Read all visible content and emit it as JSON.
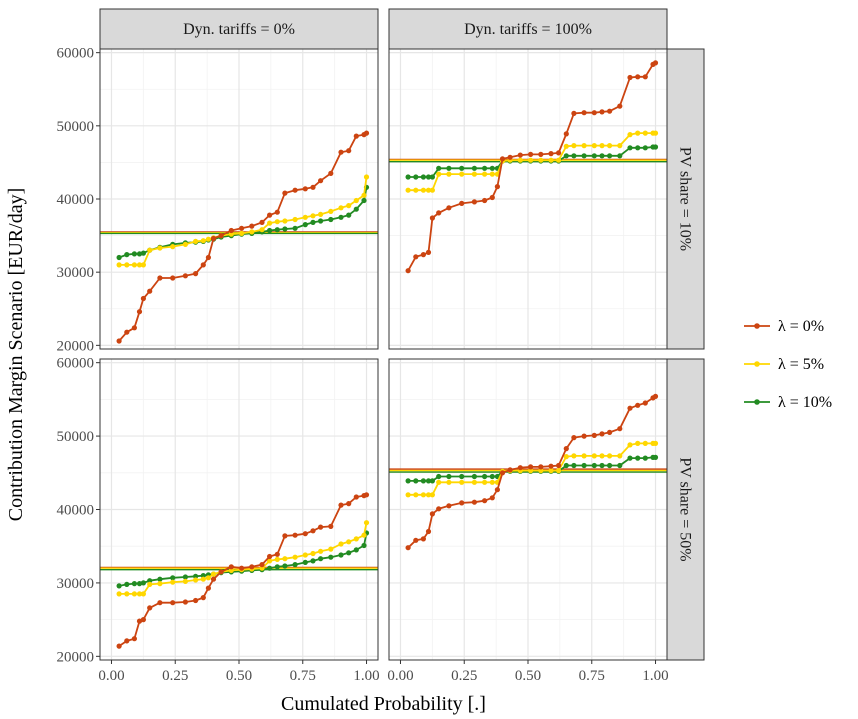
{
  "chart_data": {
    "type": "line",
    "xlabel": "Cumulated Probability [.]",
    "ylabel": "Contribution Margin Scenario [EUR/day]",
    "x_ticks": [
      "0.00",
      "0.25",
      "0.50",
      "0.75",
      "1.00"
    ],
    "y_ticks": [
      "20000",
      "30000",
      "40000",
      "50000",
      "60000"
    ],
    "xlim": [
      0,
      1
    ],
    "ylim": [
      19500,
      60500
    ],
    "grid": true,
    "legend_position": "right",
    "col_strips": [
      "Dyn. tariffs = 0%",
      "Dyn. tariffs = 100%"
    ],
    "row_strips": [
      "PV share = 10%",
      "PV share = 50%"
    ],
    "legend": [
      {
        "label": "λ = 0%",
        "color": "#CC4411"
      },
      {
        "label": "λ = 5%",
        "color": "#FFD700"
      },
      {
        "label": "λ = 10%",
        "color": "#228B22"
      }
    ],
    "x": [
      0.03,
      0.06,
      0.09,
      0.11,
      0.125,
      0.15,
      0.19,
      0.24,
      0.29,
      0.33,
      0.36,
      0.38,
      0.4,
      0.43,
      0.47,
      0.51,
      0.55,
      0.59,
      0.62,
      0.65,
      0.68,
      0.72,
      0.76,
      0.79,
      0.82,
      0.86,
      0.9,
      0.93,
      0.96,
      0.99,
      1.0
    ],
    "panels": [
      {
        "col": 0,
        "row": 0,
        "series": [
          {
            "name": "λ = 0%",
            "values": [
              20600,
              21800,
              22400,
              24600,
              26400,
              27400,
              29200,
              29200,
              29500,
              29800,
              31000,
              32000,
              34600,
              35000,
              35700,
              36000,
              36300,
              36800,
              37800,
              38200,
              40800,
              41200,
              41400,
              41600,
              42500,
              43500,
              46400,
              46600,
              48600,
              48800,
              49000
            ],
            "mean": 35500
          },
          {
            "name": "λ = 5%",
            "values": [
              31000,
              31000,
              31000,
              31000,
              31000,
              33000,
              33300,
              33500,
              33800,
              34200,
              34300,
              34500,
              34700,
              35000,
              35200,
              35300,
              35500,
              35800,
              36700,
              36900,
              37000,
              37200,
              37500,
              37700,
              37900,
              38300,
              38800,
              39100,
              39800,
              40500,
              43000
            ],
            "mean": 35400
          },
          {
            "name": "λ = 10%",
            "values": [
              32000,
              32400,
              32500,
              32500,
              32600,
              33000,
              33400,
              33800,
              34000,
              34100,
              34200,
              34400,
              34500,
              34800,
              35000,
              35200,
              35300,
              35500,
              35700,
              35800,
              35900,
              36000,
              36500,
              36800,
              37000,
              37200,
              37500,
              37800,
              38600,
              39800,
              41600
            ],
            "mean": 35300
          }
        ]
      },
      {
        "col": 1,
        "row": 0,
        "series": [
          {
            "name": "λ = 0%",
            "values": [
              30200,
              32100,
              32400,
              32700,
              37400,
              38100,
              38800,
              39400,
              39600,
              39800,
              40200,
              41700,
              45500,
              45700,
              46000,
              46100,
              46100,
              46200,
              46300,
              48900,
              51700,
              51800,
              51800,
              51900,
              52000,
              52700,
              56600,
              56700,
              56700,
              58400,
              58600
            ],
            "mean": 45400
          },
          {
            "name": "λ = 5%",
            "values": [
              41200,
              41200,
              41200,
              41200,
              41200,
              43400,
              43400,
              43400,
              43400,
              43400,
              43400,
              43400,
              45200,
              45300,
              45300,
              45300,
              45300,
              45300,
              45300,
              47200,
              47300,
              47300,
              47300,
              47300,
              47300,
              47300,
              48800,
              49000,
              49000,
              49000,
              49000
            ],
            "mean": 45300
          },
          {
            "name": "λ = 10%",
            "values": [
              43000,
              43000,
              43000,
              43000,
              43000,
              44200,
              44200,
              44200,
              44200,
              44200,
              44200,
              44200,
              45200,
              45200,
              45200,
              45200,
              45200,
              45200,
              45200,
              45900,
              45900,
              45900,
              45900,
              45900,
              45900,
              45900,
              47000,
              47000,
              47000,
              47100,
              47100
            ],
            "mean": 45100
          }
        ]
      },
      {
        "col": 0,
        "row": 1,
        "series": [
          {
            "name": "λ = 0%",
            "values": [
              21400,
              22100,
              22400,
              24800,
              25000,
              26600,
              27300,
              27300,
              27400,
              27600,
              28000,
              29300,
              30500,
              31500,
              32200,
              32000,
              32200,
              32500,
              33600,
              33900,
              36400,
              36500,
              36700,
              37100,
              37600,
              37700,
              40600,
              40800,
              41700,
              41900,
              42000
            ],
            "mean": 32100
          },
          {
            "name": "λ = 5%",
            "values": [
              28500,
              28500,
              28500,
              28500,
              28500,
              29800,
              29900,
              30100,
              30200,
              30400,
              30500,
              30700,
              31200,
              31500,
              31700,
              31800,
              31900,
              32000,
              33000,
              33200,
              33300,
              33500,
              33800,
              34000,
              34300,
              34600,
              35300,
              35600,
              36000,
              36500,
              38200
            ],
            "mean": 32000
          },
          {
            "name": "λ = 10%",
            "values": [
              29600,
              29800,
              29900,
              29900,
              30000,
              30300,
              30500,
              30700,
              30800,
              30900,
              31000,
              31100,
              31200,
              31400,
              31500,
              31600,
              31700,
              31800,
              32000,
              32200,
              32300,
              32500,
              32800,
              33000,
              33300,
              33500,
              33800,
              34100,
              34500,
              35100,
              36800
            ],
            "mean": 31800
          }
        ]
      },
      {
        "col": 1,
        "row": 1,
        "series": [
          {
            "name": "λ = 0%",
            "values": [
              34800,
              35800,
              36000,
              37000,
              39400,
              40100,
              40500,
              40900,
              41000,
              41200,
              41600,
              42700,
              45000,
              45400,
              45700,
              45800,
              45800,
              45900,
              46000,
              48300,
              49800,
              50000,
              50100,
              50300,
              50500,
              51000,
              53800,
              54200,
              54500,
              55200,
              55400
            ],
            "mean": 45500
          },
          {
            "name": "λ = 5%",
            "values": [
              42000,
              42000,
              42000,
              42000,
              42000,
              43700,
              43700,
              43700,
              43700,
              43700,
              43700,
              43700,
              45200,
              45300,
              45300,
              45300,
              45300,
              45300,
              45300,
              47200,
              47300,
              47300,
              47300,
              47300,
              47300,
              47300,
              48800,
              49000,
              49000,
              49000,
              49000
            ],
            "mean": 45300
          },
          {
            "name": "λ = 10%",
            "values": [
              43900,
              43900,
              43900,
              43900,
              43900,
              44500,
              44500,
              44500,
              44500,
              44500,
              44500,
              44500,
              45200,
              45200,
              45200,
              45200,
              45200,
              45200,
              45200,
              46000,
              46000,
              46000,
              46000,
              46000,
              46000,
              46000,
              47000,
              47000,
              47000,
              47100,
              47100
            ],
            "mean": 45100
          }
        ]
      }
    ]
  }
}
